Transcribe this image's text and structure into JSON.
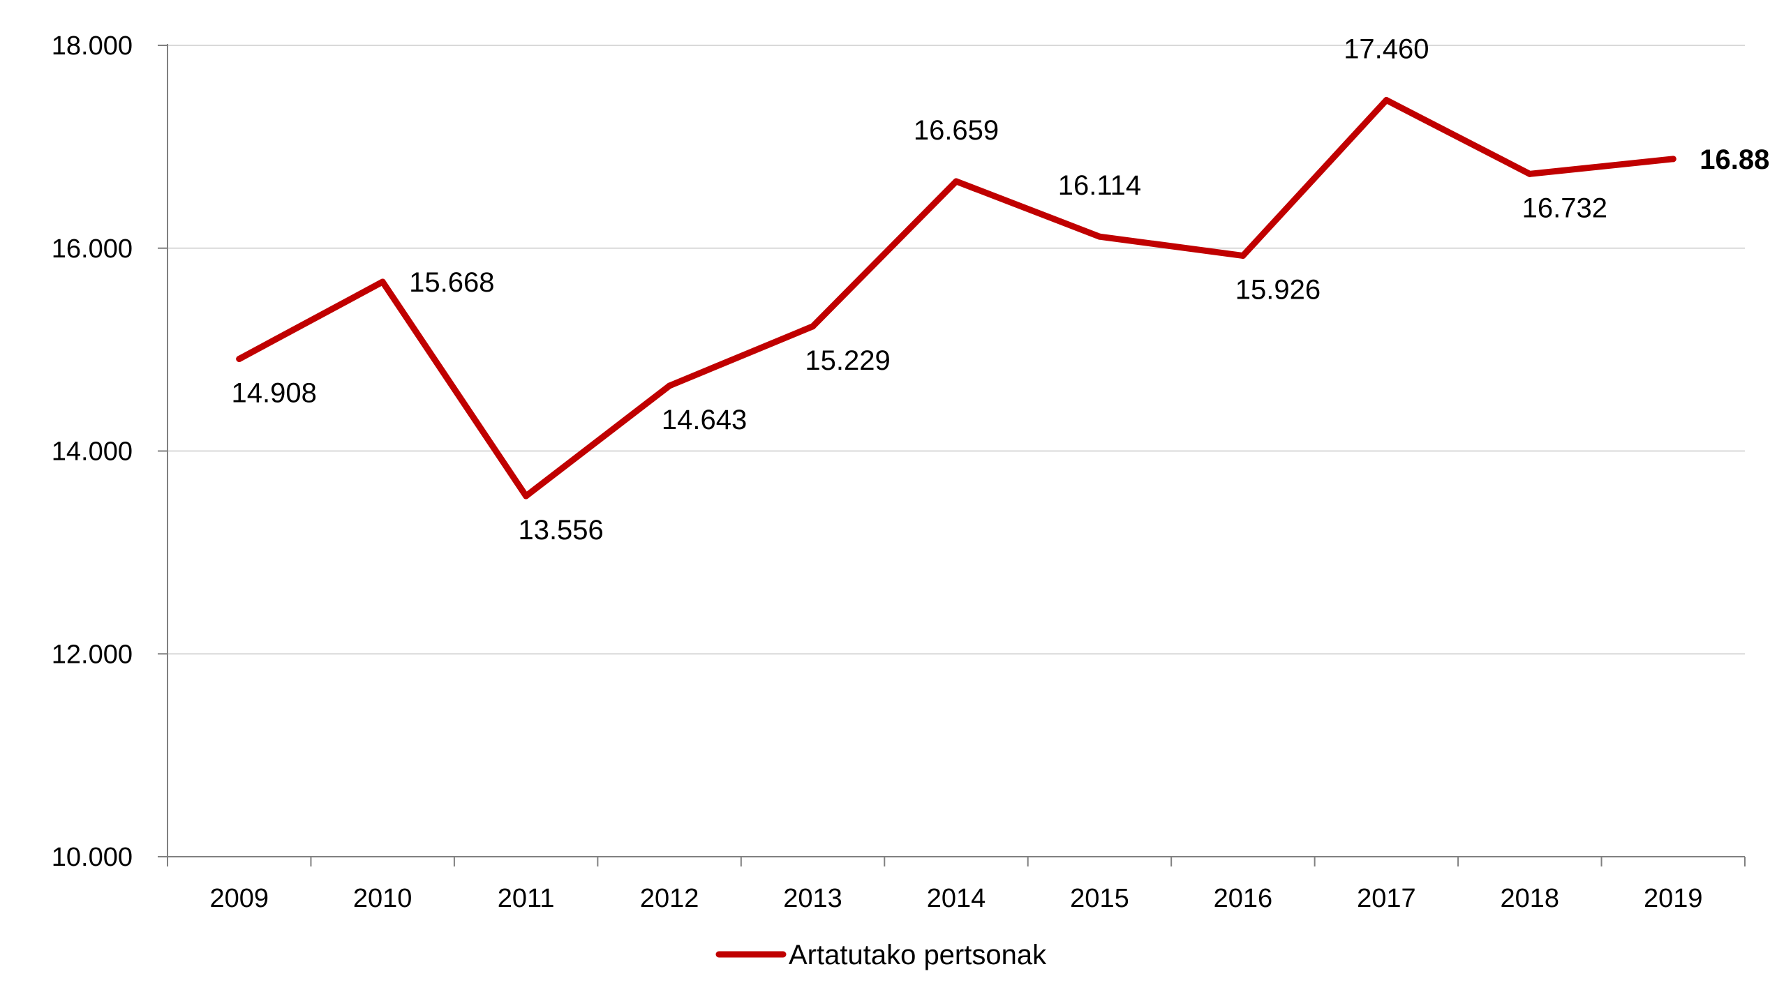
{
  "chart_data": {
    "type": "line",
    "title": "",
    "xlabel": "",
    "ylabel": "",
    "categories": [
      "2009",
      "2010",
      "2011",
      "2012",
      "2013",
      "2014",
      "2015",
      "2016",
      "2017",
      "2018",
      "2019"
    ],
    "series": [
      {
        "name": "Artatutako pertsonak",
        "color": "#C00000",
        "values": [
          14908,
          15668,
          13556,
          14643,
          15229,
          16659,
          16114,
          15926,
          17460,
          16732,
          16880
        ],
        "labels": [
          "14.908",
          "15.668",
          "13.556",
          "14.643",
          "15.229",
          "16.659",
          "16.114",
          "15.926",
          "17.460",
          "16.732",
          "16.880"
        ],
        "label_positions": [
          "below",
          "right",
          "below",
          "below",
          "below",
          "above",
          "above",
          "below",
          "above",
          "below",
          "right"
        ],
        "bold_labels": [
          false,
          false,
          false,
          false,
          false,
          false,
          false,
          false,
          false,
          false,
          true
        ]
      }
    ],
    "ylim": [
      10000,
      18000
    ],
    "yticks": [
      10000,
      12000,
      14000,
      16000,
      18000
    ],
    "ytick_labels": [
      "10.000",
      "12.000",
      "14.000",
      "16.000",
      "18.000"
    ],
    "grid": true,
    "gridline_color": "#D9D9D9",
    "legend": "bottom-center"
  }
}
